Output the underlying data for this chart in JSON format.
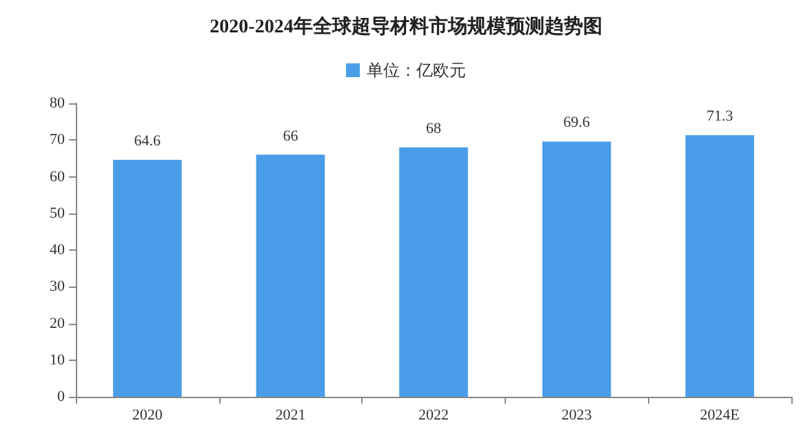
{
  "chart_data": {
    "type": "bar",
    "title": "2020-2024年全球超导材料市场规模预测趋势图",
    "categories": [
      "2020",
      "2021",
      "2022",
      "2023",
      "2024E"
    ],
    "series": [
      {
        "name": "单位：亿欧元",
        "color": "#4a9de8",
        "values": [
          64.6,
          66,
          68,
          69.6,
          71.3
        ]
      }
    ],
    "ylim": [
      0,
      80
    ],
    "yticks": [
      0,
      10,
      20,
      30,
      40,
      50,
      60,
      70,
      80
    ],
    "grid": false,
    "legend": "top",
    "data_labels": true
  }
}
